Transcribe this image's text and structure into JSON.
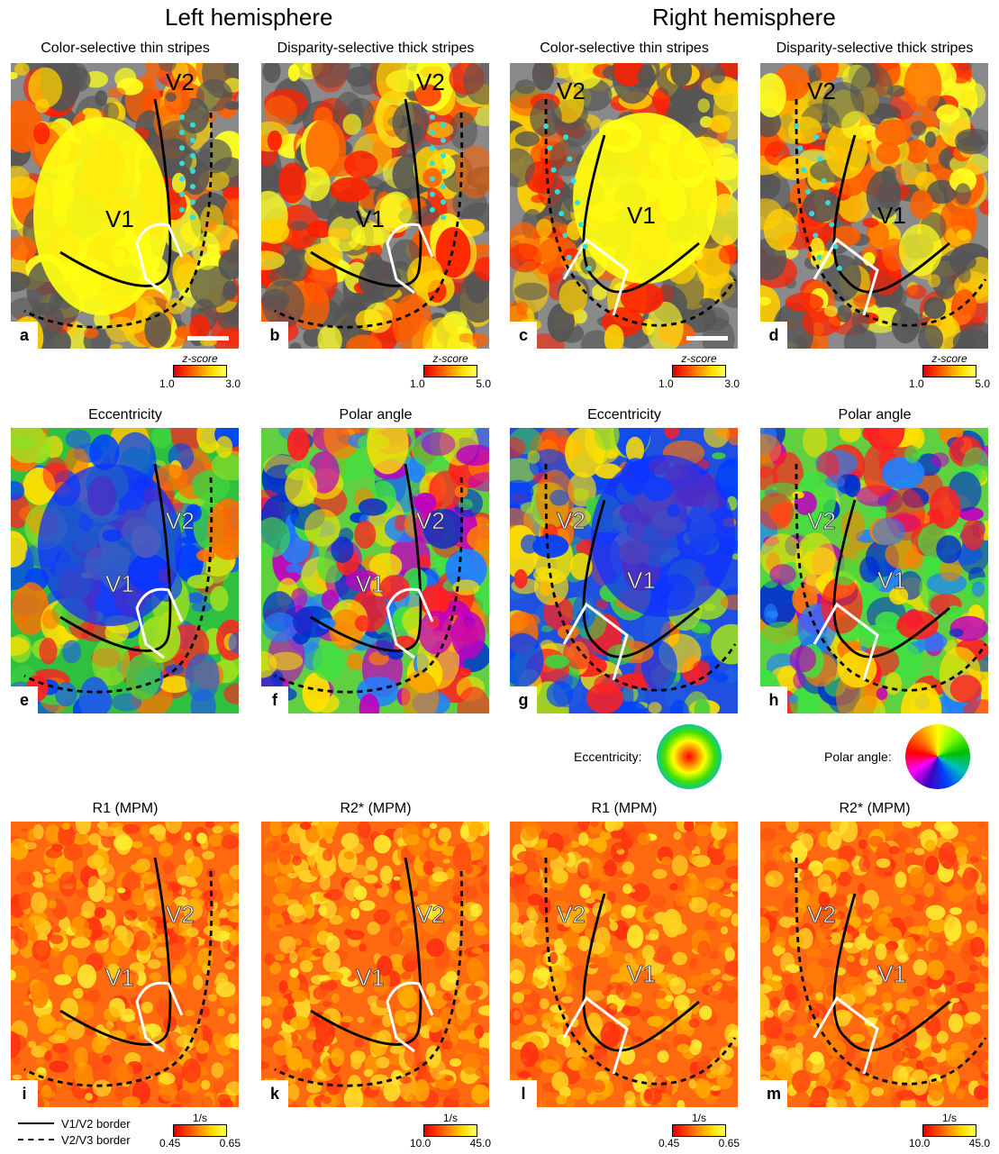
{
  "hemispheres": {
    "left": "Left hemisphere",
    "right": "Right hemisphere"
  },
  "rows": {
    "a": {
      "titles": [
        "Color-selective thin stripes",
        "Disparity-selective thick stripes",
        "Color-selective thin stripes",
        "Disparity-selective thick stripes"
      ],
      "letters": [
        "a",
        "b",
        "c",
        "d"
      ]
    },
    "b": {
      "titles": [
        "Eccentricity",
        "Polar angle",
        "Eccentricity",
        "Polar angle"
      ],
      "letters": [
        "e",
        "f",
        "g",
        "h"
      ]
    },
    "c": {
      "titles": [
        "R1 (MPM)",
        "R2* (MPM)",
        "R1 (MPM)",
        "R2* (MPM)"
      ],
      "letters": [
        "i",
        "k",
        "l",
        "m"
      ]
    }
  },
  "area_labels": {
    "v1": "V1",
    "v2": "V2"
  },
  "colorbars": {
    "zscore": [
      {
        "title": "z-score",
        "min": "1.0",
        "max": "3.0"
      },
      {
        "title": "z-score",
        "min": "1.0",
        "max": "5.0"
      },
      {
        "title": "z-score",
        "min": "1.0",
        "max": "3.0"
      },
      {
        "title": "z-score",
        "min": "1.0",
        "max": "5.0"
      }
    ],
    "mpm": [
      {
        "title": "1/s",
        "min": "0.45",
        "max": "0.65"
      },
      {
        "title": "1/s",
        "min": "10.0",
        "max": "45.0"
      },
      {
        "title": "1/s",
        "min": "0.45",
        "max": "0.65"
      },
      {
        "title": "1/s",
        "min": "10.0",
        "max": "45.0"
      }
    ]
  },
  "wheels": {
    "eccentricity": "Eccentricity:",
    "polar": "Polar angle:"
  },
  "legend": {
    "solid": "V1/V2 border",
    "dashed": "V2/V3 border"
  },
  "colors": {
    "border_line": "#000000",
    "roi_outline": "#ffffff",
    "stripe_markers": "#33dddd",
    "sulcus_dark": "#555555",
    "gyrus_light": "#8a8a8a"
  }
}
